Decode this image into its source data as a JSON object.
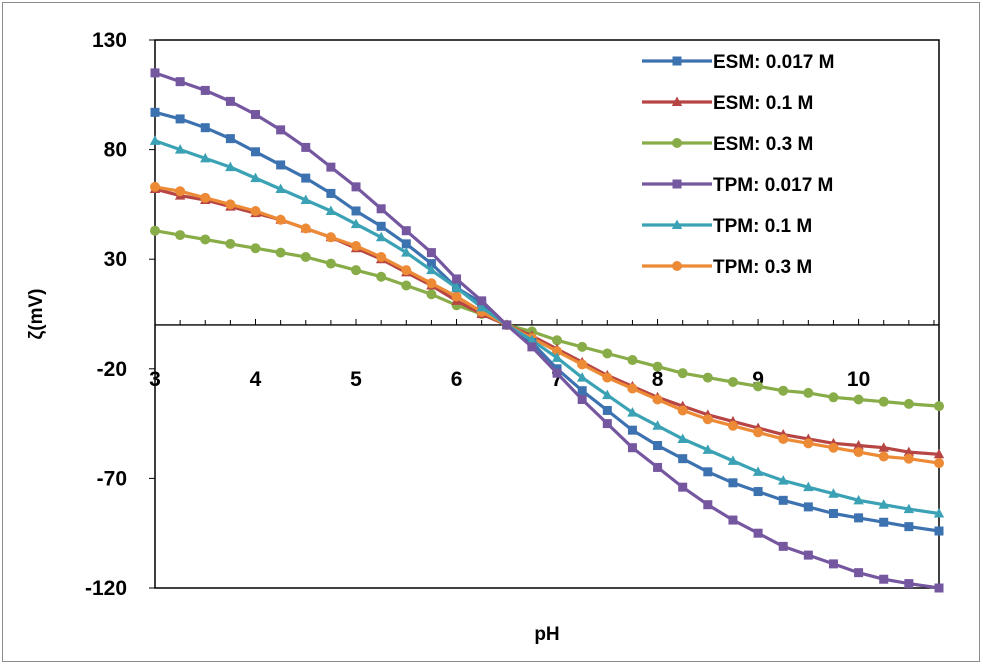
{
  "chart_data": {
    "type": "line",
    "title": "",
    "xlabel": "pH",
    "ylabel": "ζ(mV)",
    "xlim": [
      3,
      10.8
    ],
    "ylim": [
      -120,
      130
    ],
    "x_ticks": [
      "3",
      "4",
      "5",
      "6",
      "7",
      "8",
      "9",
      "10"
    ],
    "y_ticks": [
      "130",
      "80",
      "30",
      "-20",
      "-70",
      "-120"
    ],
    "grid": false,
    "legend_position": "top-right",
    "x": [
      3.0,
      3.25,
      3.5,
      3.75,
      4.0,
      4.25,
      4.5,
      4.75,
      5.0,
      5.25,
      5.5,
      5.75,
      6.0,
      6.25,
      6.5,
      6.75,
      7.0,
      7.25,
      7.5,
      7.75,
      8.0,
      8.25,
      8.5,
      8.75,
      9.0,
      9.25,
      9.5,
      9.75,
      10.0,
      10.25,
      10.5,
      10.8
    ],
    "series": [
      {
        "name": "ESM: 0.017 M",
        "color": "#3d72b0",
        "marker": "square",
        "values": [
          97,
          94,
          90,
          85,
          79,
          73,
          67,
          60,
          52,
          45,
          37,
          28,
          17,
          10,
          0,
          -8,
          -20,
          -30,
          -39,
          -48,
          -55,
          -61,
          -67,
          -72,
          -76,
          -80,
          -83,
          -86,
          -88,
          -90,
          -92,
          -94
        ]
      },
      {
        "name": "ESM: 0.1 M",
        "color": "#b64543",
        "marker": "triangle",
        "values": [
          62,
          59,
          57,
          54,
          51,
          48,
          44,
          40,
          35,
          30,
          24,
          18,
          11,
          5,
          0,
          -5,
          -11,
          -17,
          -23,
          -28,
          -33,
          -37,
          -41,
          -44,
          -47,
          -50,
          -52,
          -54,
          -55,
          -56,
          -58,
          -59
        ]
      },
      {
        "name": "ESM: 0.3 M",
        "color": "#88ac48",
        "marker": "circle",
        "values": [
          43,
          41,
          39,
          37,
          35,
          33,
          31,
          28,
          25,
          22,
          18,
          14,
          9,
          5,
          0,
          -3,
          -7,
          -10,
          -13,
          -16,
          -19,
          -22,
          -24,
          -26,
          -28,
          -30,
          -31,
          -33,
          -34,
          -35,
          -36,
          -37
        ]
      },
      {
        "name": "TPM: 0.017 M",
        "color": "#7557a0",
        "marker": "square",
        "values": [
          115,
          111,
          107,
          102,
          96,
          89,
          81,
          72,
          63,
          53,
          43,
          33,
          21,
          11,
          0,
          -10,
          -22,
          -34,
          -45,
          -56,
          -65,
          -74,
          -82,
          -89,
          -95,
          -101,
          -105,
          -109,
          -113,
          -116,
          -118,
          -120
        ]
      },
      {
        "name": "TPM: 0.1 M",
        "color": "#3aa2b4",
        "marker": "triangle",
        "values": [
          84,
          80,
          76,
          72,
          67,
          62,
          57,
          52,
          46,
          40,
          33,
          25,
          17,
          8,
          0,
          -7,
          -15,
          -24,
          -32,
          -40,
          -46,
          -52,
          -57,
          -62,
          -67,
          -71,
          -74,
          -77,
          -80,
          -82,
          -84,
          -86
        ]
      },
      {
        "name": "TPM: 0.3 M",
        "color": "#ed8a36",
        "marker": "circle",
        "values": [
          63,
          61,
          58,
          55,
          52,
          48,
          44,
          40,
          36,
          31,
          25,
          19,
          13,
          6,
          0,
          -6,
          -12,
          -18,
          -24,
          -29,
          -34,
          -39,
          -43,
          -46,
          -49,
          -52,
          -54,
          -56,
          -58,
          -60,
          -61,
          -63
        ]
      }
    ]
  }
}
